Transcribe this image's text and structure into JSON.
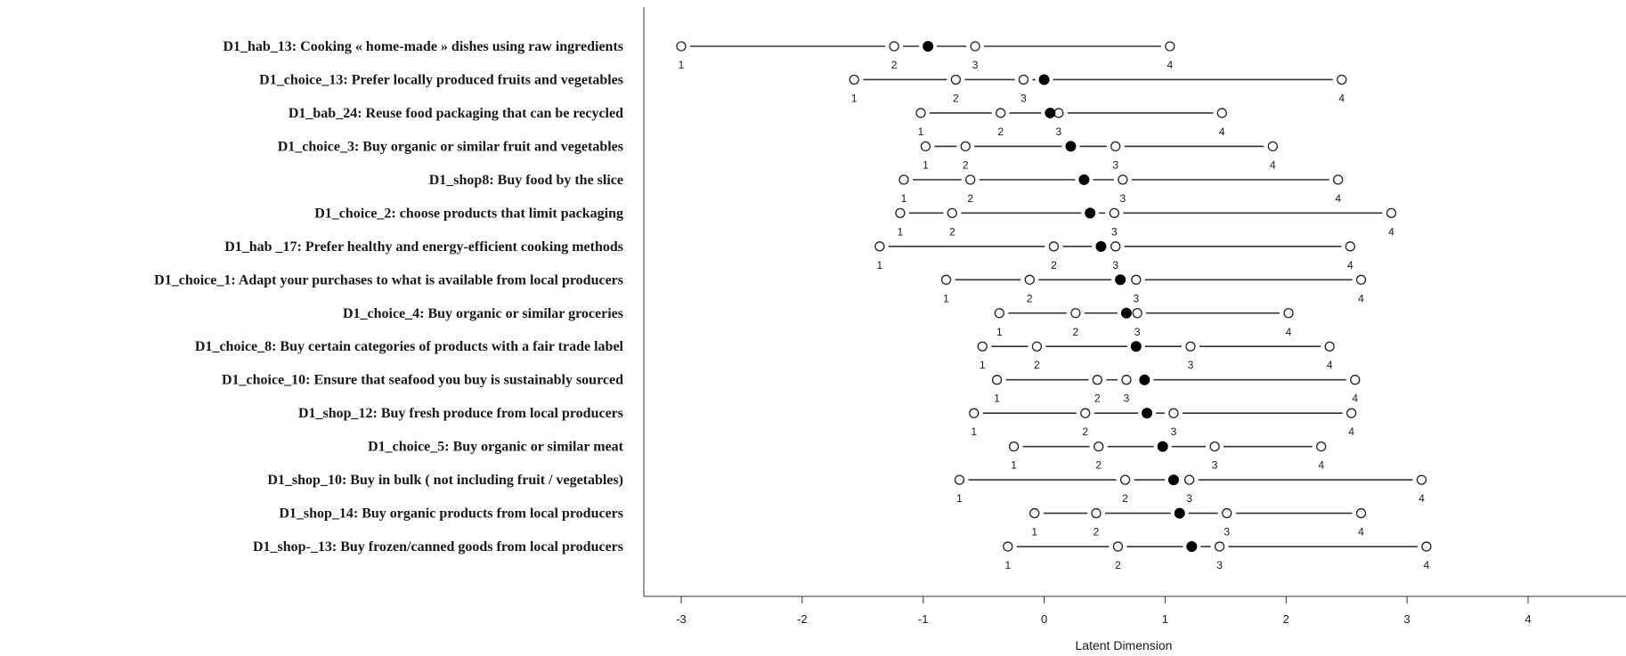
{
  "chart_data": {
    "type": "scatter",
    "title": "",
    "xlabel": "Latent Dimension",
    "ylabel": "",
    "xlim": [
      -3.3,
      4.8
    ],
    "xticks": [
      -3,
      -2,
      -1,
      0,
      1,
      2,
      3,
      4
    ],
    "grid": false,
    "legend": "none",
    "marker_colors": {
      "threshold_fill": "#ffffff",
      "location_fill": "#000000",
      "line": "#333333"
    },
    "items": [
      {
        "label": "D1_hab_13: Cooking « home-made » dishes using raw ingredients",
        "thresholds": [
          -3.0,
          -1.24,
          -0.57,
          1.04
        ],
        "threshold_labels": [
          "1",
          "2",
          "3",
          "4"
        ],
        "location": -0.96
      },
      {
        "label": "D1_choice_13: Prefer locally produced fruits and vegetables",
        "thresholds": [
          -1.57,
          -0.73,
          -0.17,
          2.46
        ],
        "threshold_labels": [
          "1",
          "2",
          "3",
          "4"
        ],
        "location": 0.0
      },
      {
        "label": "D1_bab_24: Reuse food packaging that can be recycled",
        "thresholds": [
          -1.02,
          -0.36,
          0.12,
          1.47
        ],
        "threshold_labels": [
          "1",
          "2",
          "3",
          "4"
        ],
        "location": 0.05
      },
      {
        "label": "D1_choice_3: Buy organic or similar fruit and vegetables",
        "thresholds": [
          -0.98,
          -0.65,
          0.59,
          1.89
        ],
        "threshold_labels": [
          "1",
          "2",
          "3",
          "4"
        ],
        "location": 0.22
      },
      {
        "label": "D1_shop8: Buy food by the slice",
        "thresholds": [
          -1.16,
          -0.61,
          0.65,
          2.43
        ],
        "threshold_labels": [
          "1",
          "2",
          "3",
          "4"
        ],
        "location": 0.33
      },
      {
        "label": "D1_choice_2: choose products that limit packaging",
        "thresholds": [
          -1.19,
          -0.76,
          0.58,
          2.87
        ],
        "threshold_labels": [
          "1",
          "2",
          "3",
          "4"
        ],
        "location": 0.38
      },
      {
        "label": "D1_hab _17: Prefer healthy and energy-efficient cooking methods",
        "thresholds": [
          -1.36,
          0.08,
          0.59,
          2.53
        ],
        "threshold_labels": [
          "1",
          "2",
          "3",
          "4"
        ],
        "location": 0.47
      },
      {
        "label": "D1_choice_1: Adapt  your purchases to what is available from  local producers",
        "thresholds": [
          -0.81,
          -0.12,
          0.76,
          2.62
        ],
        "threshold_labels": [
          "1",
          "2",
          "3",
          "4"
        ],
        "location": 0.63
      },
      {
        "label": "D1_choice_4: Buy organic or similar groceries",
        "thresholds": [
          -0.37,
          0.26,
          0.77,
          2.02
        ],
        "threshold_labels": [
          "1",
          "2",
          "3",
          "4"
        ],
        "location": 0.68
      },
      {
        "label": "D1_choice_8: Buy certain categories of  products with a fair trade label",
        "thresholds": [
          -0.51,
          -0.06,
          1.21,
          2.36
        ],
        "threshold_labels": [
          "1",
          "2",
          "3",
          "4"
        ],
        "location": 0.76
      },
      {
        "label": "D1_choice_10: Ensure that seafood you buy is sustainably sourced",
        "thresholds": [
          -0.39,
          0.44,
          0.68,
          2.57
        ],
        "threshold_labels": [
          "1",
          "2",
          "3",
          "4"
        ],
        "location": 0.83
      },
      {
        "label": "D1_shop_12: Buy fresh produce  from  local producers",
        "thresholds": [
          -0.58,
          0.34,
          1.07,
          2.54
        ],
        "threshold_labels": [
          "1",
          "2",
          "3",
          "4"
        ],
        "location": 0.85
      },
      {
        "label": "D1_choice_5: Buy organic or similar meat",
        "thresholds": [
          -0.25,
          0.45,
          1.41,
          2.29
        ],
        "threshold_labels": [
          "1",
          "2",
          "3",
          "4"
        ],
        "location": 0.98
      },
      {
        "label": "D1_shop_10: Buy in bulk ( not including fruit / vegetables)",
        "thresholds": [
          -0.7,
          0.67,
          1.2,
          3.12
        ],
        "threshold_labels": [
          "1",
          "2",
          "3",
          "4"
        ],
        "location": 1.07
      },
      {
        "label": "D1_shop_14: Buy organic products  from  local producers",
        "thresholds": [
          -0.08,
          0.43,
          1.51,
          2.62
        ],
        "threshold_labels": [
          "1",
          "2",
          "3",
          "4"
        ],
        "location": 1.12
      },
      {
        "label": "D1_shop-_13: Buy frozen/canned goods from  local producers",
        "thresholds": [
          -0.3,
          0.61,
          1.45,
          3.16
        ],
        "threshold_labels": [
          "1",
          "2",
          "3",
          "4"
        ],
        "location": 1.22
      }
    ]
  }
}
